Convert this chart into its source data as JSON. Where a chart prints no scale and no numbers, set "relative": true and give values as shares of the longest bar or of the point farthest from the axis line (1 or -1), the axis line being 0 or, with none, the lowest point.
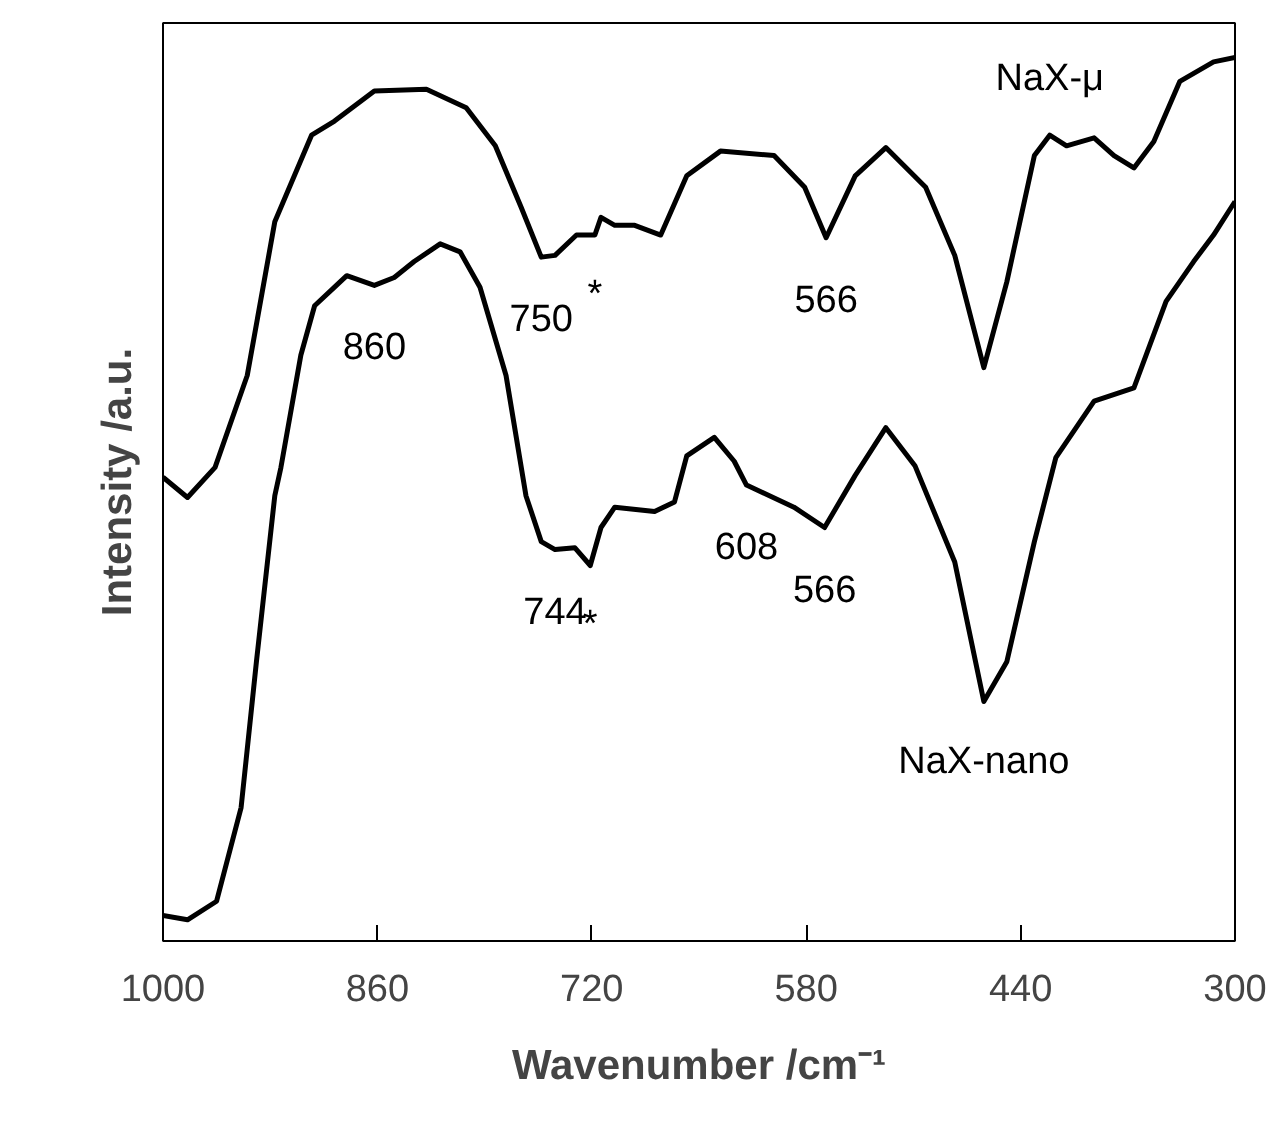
{
  "chart_data": {
    "type": "line",
    "relative": true,
    "xlabel": "Wavenumber /cm⁻¹",
    "ylabel": "Intensity /a.u.",
    "xlim": [
      1000,
      300
    ],
    "xticks": [
      1000,
      860,
      720,
      580,
      440,
      300
    ],
    "grid": false,
    "series": [
      {
        "color": "#000000",
        "x": [
          1000,
          984,
          966,
          945,
          927,
          903,
          888,
          862,
          828,
          802,
          783,
          766,
          753,
          744,
          730,
          718,
          714,
          705,
          692,
          675,
          658,
          636,
          601,
          581,
          567,
          548,
          528,
          502,
          483,
          464,
          449,
          431,
          421,
          410,
          392,
          379,
          366,
          353,
          336,
          314,
          300
        ],
        "values": [
          0.525,
          0.502,
          0.536,
          0.64,
          0.814,
          0.912,
          0.928,
          0.962,
          0.964,
          0.943,
          0.9,
          0.83,
          0.774,
          0.776,
          0.799,
          0.799,
          0.819,
          0.81,
          0.81,
          0.799,
          0.866,
          0.894,
          0.889,
          0.853,
          0.796,
          0.866,
          0.898,
          0.853,
          0.776,
          0.649,
          0.746,
          0.889,
          0.912,
          0.9,
          0.909,
          0.889,
          0.875,
          0.905,
          0.973,
          0.995,
          1.0
        ]
      },
      {
        "color": "#000000",
        "x": [
          1000,
          984,
          965,
          949,
          939,
          927,
          923,
          910,
          901,
          888,
          880,
          862,
          849,
          836,
          819,
          806,
          793,
          776,
          763,
          753,
          744,
          731,
          721,
          714,
          705,
          679,
          666,
          658,
          640,
          627,
          619,
          588,
          568,
          548,
          528,
          509,
          483,
          464,
          449,
          431,
          417,
          392,
          366,
          345,
          327,
          314,
          300
        ],
        "values": [
          0.029,
          0.024,
          0.045,
          0.151,
          0.316,
          0.504,
          0.536,
          0.663,
          0.719,
          0.74,
          0.753,
          0.742,
          0.751,
          0.769,
          0.789,
          0.78,
          0.74,
          0.64,
          0.504,
          0.452,
          0.443,
          0.445,
          0.425,
          0.468,
          0.491,
          0.486,
          0.497,
          0.549,
          0.57,
          0.543,
          0.516,
          0.491,
          0.468,
          0.527,
          0.581,
          0.538,
          0.429,
          0.271,
          0.316,
          0.452,
          0.547,
          0.611,
          0.626,
          0.724,
          0.769,
          0.799,
          0.837
        ]
      }
    ],
    "annotations": [
      {
        "text": "NaX-μ",
        "x": 421,
        "y": 0.912
      },
      {
        "text": "860",
        "x": 862,
        "y": 0.742
      },
      {
        "text": "750",
        "x": 753,
        "y": 0.774
      },
      {
        "text": "*",
        "x": 718,
        "y": 0.799
      },
      {
        "text": "566",
        "x": 567,
        "y": 0.796
      },
      {
        "text": "744",
        "x": 744,
        "y": 0.443
      },
      {
        "text": "*",
        "x": 721,
        "y": 0.425
      },
      {
        "text": "608",
        "x": 619,
        "y": 0.516
      },
      {
        "text": "566",
        "x": 568,
        "y": 0.468
      },
      {
        "text": "NaX-nano",
        "x": 464,
        "y": 0.271
      }
    ]
  }
}
